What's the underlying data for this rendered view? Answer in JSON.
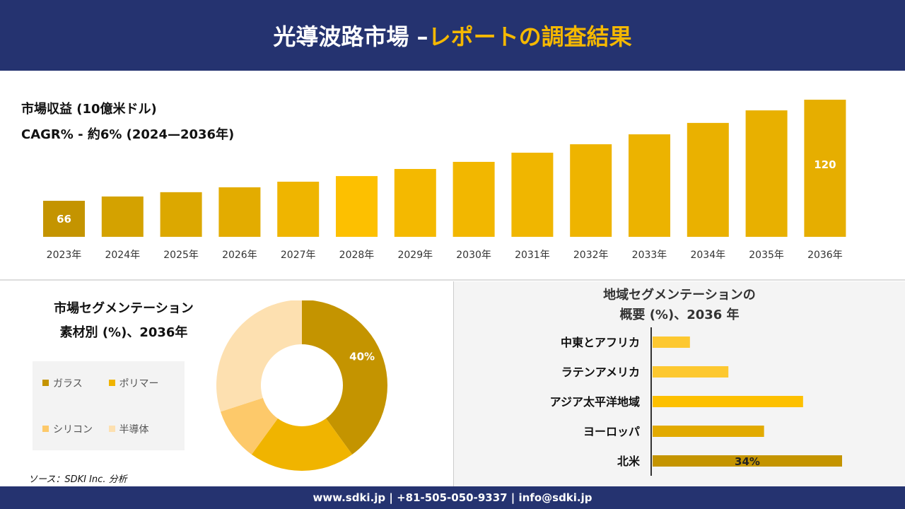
{
  "header": {
    "title_main": "光導波路市場 –",
    "title_accent": "レポートの調査結果"
  },
  "revenue": {
    "subtitle": "市場収益 (10億米ドル)",
    "cagr": "CAGR% - 約6% (2024—2036年)"
  },
  "chart_data": [
    {
      "type": "bar",
      "categories": [
        "2023年",
        "2024年",
        "2025年",
        "2026年",
        "2027年",
        "2028年",
        "2029年",
        "2030年",
        "2031年",
        "2032年",
        "2033年",
        "2034年",
        "2035年",
        "2036年"
      ],
      "values": [
        66,
        68.3,
        70.6,
        73.2,
        76.2,
        79.2,
        83,
        86.8,
        91.7,
        96.2,
        101.5,
        107.6,
        114.3,
        120
      ],
      "data_labels": {
        "0": "66",
        "13": "120"
      },
      "ylabel": "市場収益 (10億米ドル)",
      "colors": [
        "#c49400",
        "#d4a200",
        "#dca800",
        "#e3ac00",
        "#efb500",
        "#fdc000",
        "#f4b900",
        "#f2b700",
        "#f0b600",
        "#eeb400",
        "#ecb300",
        "#eab100",
        "#e8b000",
        "#e6ae00"
      ]
    },
    {
      "type": "pie",
      "title": "市場セグメンテーション素材別 (%)、2036年",
      "categories": [
        "ガラス",
        "ポリマー",
        "シリコン",
        "半導体"
      ],
      "values": [
        40,
        20,
        10,
        30
      ],
      "colors": [
        "#c49400",
        "#f0b400",
        "#fdc96a",
        "#fde0b0"
      ],
      "data_labels": {
        "0": "40%"
      }
    },
    {
      "type": "bar",
      "orientation": "horizontal",
      "title": "地域セグメンテーションの概要 (%)、2036 年",
      "categories": [
        "中東とアフリカ",
        "ラテンアメリカ",
        "アジア太平洋地域",
        "ヨーロッパ",
        "北米"
      ],
      "values": [
        6.7,
        13.6,
        27,
        20,
        34
      ],
      "data_labels": {
        "4": "34%"
      },
      "colors": [
        "#fdc830",
        "#fdc830",
        "#fdc000",
        "#e2aa00",
        "#c49400"
      ]
    }
  ],
  "left": {
    "title1": "市場セグメンテーション",
    "title2": "素材別 (%)、2036年"
  },
  "right": {
    "title1": "地域セグメンテーションの",
    "title2": "概要 (%)、2036 年"
  },
  "source": "ソース：SDKI Inc. 分析",
  "footer": "www.sdki.jp | +81-505-050-9337 | info@sdki.jp"
}
